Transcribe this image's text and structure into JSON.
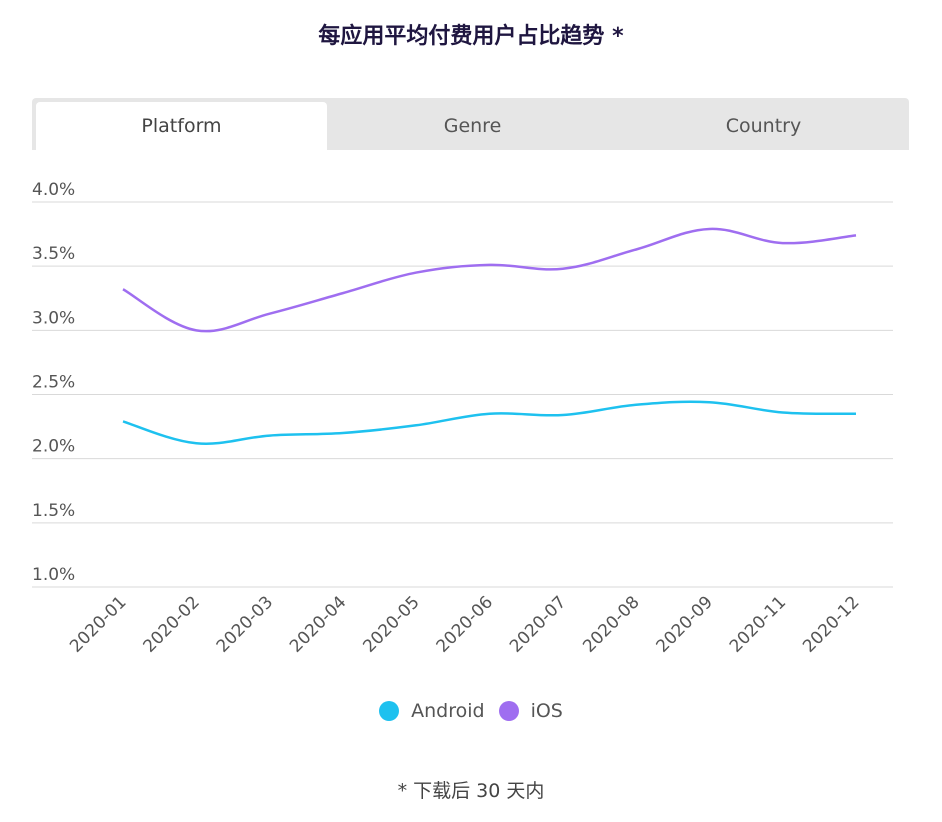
{
  "title": "每应用平均付费用户占比趋势 *",
  "tabs": [
    {
      "label": "Platform",
      "active": true
    },
    {
      "label": "Genre",
      "active": false
    },
    {
      "label": "Country",
      "active": false
    }
  ],
  "footnote": "* 下载后 30 天内",
  "colors": {
    "android": "#1ec1ef",
    "ios": "#9f6ef0",
    "grid": "#d9d9d9"
  },
  "chart_data": {
    "type": "line",
    "x": [
      "2020-01",
      "2020-02",
      "2020-03",
      "2020-04",
      "2020-05",
      "2020-06",
      "2020-07",
      "2020-08",
      "2020-09",
      "2020-11",
      "2020-12"
    ],
    "yticks": [
      "1.0%",
      "1.5%",
      "2.0%",
      "2.5%",
      "3.0%",
      "3.5%",
      "4.0%"
    ],
    "ylim": [
      1.0,
      4.0
    ],
    "grid": true,
    "legend_position": "bottom",
    "series": [
      {
        "name": "Android",
        "color": "#1ec1ef",
        "values": [
          2.29,
          2.12,
          2.18,
          2.2,
          2.26,
          2.35,
          2.34,
          2.42,
          2.44,
          2.36,
          2.35
        ]
      },
      {
        "name": "iOS",
        "color": "#9f6ef0",
        "values": [
          3.32,
          3.0,
          3.13,
          3.29,
          3.45,
          3.51,
          3.48,
          3.63,
          3.79,
          3.68,
          3.74
        ]
      }
    ]
  }
}
